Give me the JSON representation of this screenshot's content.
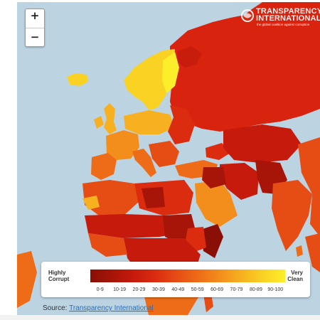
{
  "map": {
    "zoom_in_label": "+",
    "zoom_out_label": "−",
    "logo": {
      "line1": "TRANSPARENCY",
      "line2": "INTERNATIONAL",
      "tagline": "the global coalition against corruption"
    },
    "background_color": "#bcd3e2"
  },
  "legend": {
    "left_label_line1": "Highly",
    "left_label_line2": "Corrupt",
    "right_label_line1": "Very",
    "right_label_line2": "Clean",
    "bins": [
      {
        "label": "0-9",
        "color": "#8a0f06"
      },
      {
        "label": "10-19",
        "color": "#a61508"
      },
      {
        "label": "20-29",
        "color": "#c61a0c"
      },
      {
        "label": "30-39",
        "color": "#db2c10"
      },
      {
        "label": "40-49",
        "color": "#e64d14"
      },
      {
        "label": "50-59",
        "color": "#ee6c17"
      },
      {
        "label": "60-69",
        "color": "#f38e1c"
      },
      {
        "label": "70-79",
        "color": "#f7b120"
      },
      {
        "label": "80-89",
        "color": "#fad224"
      },
      {
        "label": "90-100",
        "color": "#fdee2a"
      }
    ]
  },
  "source": {
    "prefix": "Source:",
    "link_text": "Transparency International"
  }
}
